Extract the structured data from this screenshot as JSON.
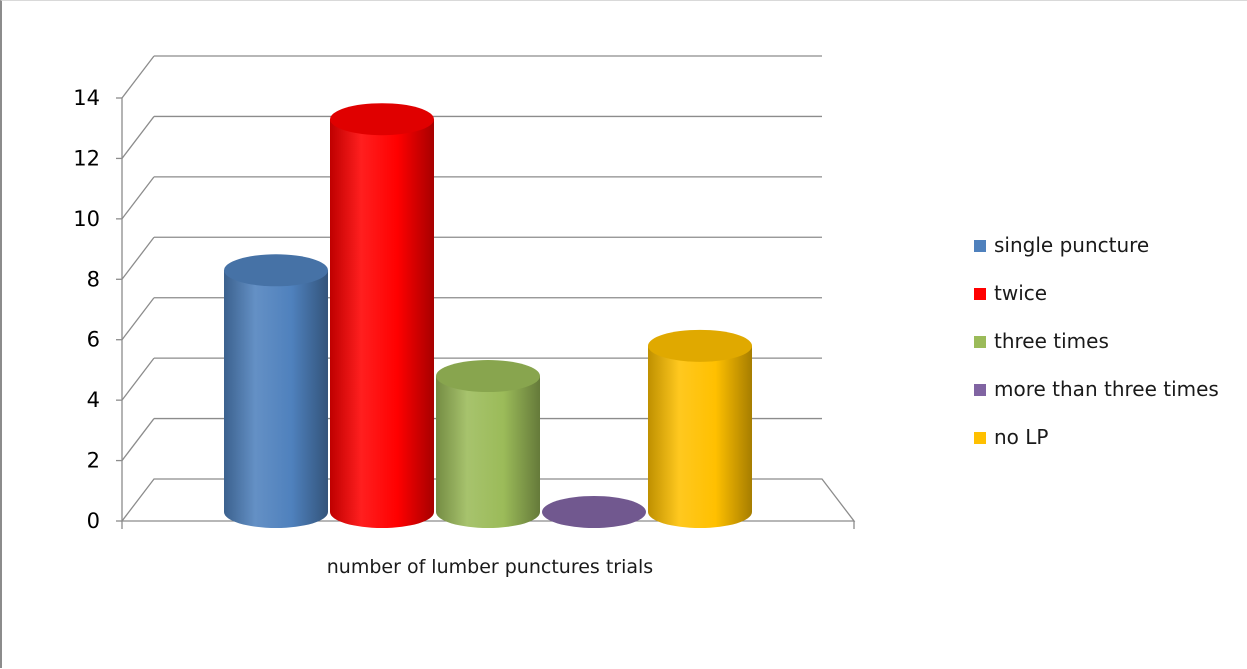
{
  "chart_data": {
    "type": "bar",
    "style": "3d-cylinder",
    "title": "",
    "xlabel": "number of lumber punctures trials",
    "ylabel": "",
    "ylim": [
      0,
      14
    ],
    "yticks": [
      0,
      2,
      4,
      6,
      8,
      10,
      12,
      14
    ],
    "grid": true,
    "legend_position": "right",
    "categories": [
      "number of lumber punctures trials"
    ],
    "series": [
      {
        "name": "single puncture",
        "values": [
          8
        ],
        "color": "#4f81bd"
      },
      {
        "name": "twice",
        "values": [
          13
        ],
        "color": "#ff0000"
      },
      {
        "name": "three times",
        "values": [
          4.5
        ],
        "color": "#9bbb59"
      },
      {
        "name": "more than three times",
        "values": [
          0
        ],
        "color": "#8064a2"
      },
      {
        "name": "no LP",
        "values": [
          5.5
        ],
        "color": "#ffc000"
      }
    ]
  }
}
